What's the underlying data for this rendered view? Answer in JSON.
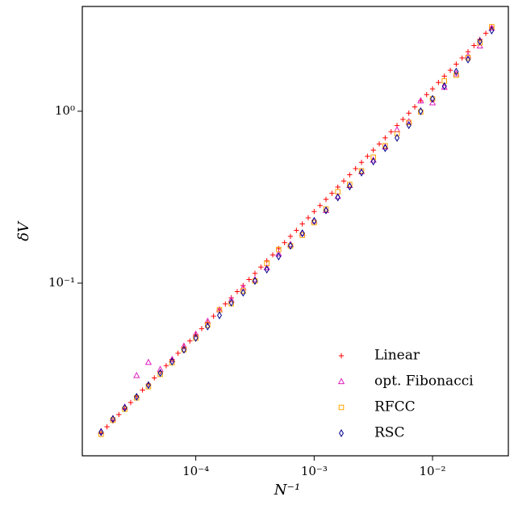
{
  "chart_data": {
    "type": "scatter",
    "xlabel": "N⁻¹",
    "ylabel": "δV",
    "xscale": "log",
    "yscale": "log",
    "xlim": [
      1.1e-05,
      0.0437
    ],
    "ylim": [
      0.0099,
      4.07
    ],
    "xticks": [
      {
        "value": 0.0001,
        "label": "10⁻⁴"
      },
      {
        "value": 0.001,
        "label": "10⁻³"
      },
      {
        "value": 0.01,
        "label": "10⁻²"
      }
    ],
    "yticks": [
      {
        "value": 0.1,
        "label": "10⁻¹"
      },
      {
        "value": 1,
        "label": "10⁰"
      }
    ],
    "legend": "lower right",
    "series": [
      {
        "name": "Linear",
        "color": "#ff0000",
        "marker": "plus",
        "x": [
          1.585e-05,
          1.778e-05,
          1.995e-05,
          2.239e-05,
          2.512e-05,
          2.818e-05,
          3.162e-05,
          3.548e-05,
          3.981e-05,
          4.467e-05,
          5.012e-05,
          5.623e-05,
          6.31e-05,
          7.079e-05,
          7.943e-05,
          8.913e-05,
          0.0001,
          0.0001122,
          0.0001259,
          0.0001413,
          0.0001585,
          0.0001778,
          0.0001995,
          0.0002239,
          0.0002512,
          0.0002818,
          0.0003162,
          0.0003548,
          0.0003981,
          0.0004467,
          0.0005012,
          0.0005623,
          0.000631,
          0.0007079,
          0.0007943,
          0.0008913,
          0.001,
          0.001122,
          0.001259,
          0.001413,
          0.001585,
          0.001778,
          0.001995,
          0.002239,
          0.002512,
          0.002818,
          0.003162,
          0.003548,
          0.003981,
          0.004467,
          0.005012,
          0.005623,
          0.00631,
          0.007079,
          0.007943,
          0.008913,
          0.01,
          0.01122,
          0.01259,
          0.01413,
          0.01585,
          0.01778,
          0.01995,
          0.02239,
          0.02512,
          0.02818,
          0.03162
        ],
        "values": [
          0.0134,
          0.0146,
          0.0158,
          0.0172,
          0.0186,
          0.0202,
          0.022,
          0.0239,
          0.0259,
          0.0281,
          0.0305,
          0.0331,
          0.036,
          0.0391,
          0.0425,
          0.0461,
          0.0501,
          0.0544,
          0.0591,
          0.0642,
          0.0697,
          0.0757,
          0.0822,
          0.0893,
          0.0969,
          0.105,
          0.114,
          0.124,
          0.135,
          0.146,
          0.159,
          0.172,
          0.187,
          0.203,
          0.221,
          0.24,
          0.261,
          0.283,
          0.307,
          0.333,
          0.362,
          0.393,
          0.427,
          0.464,
          0.504,
          0.547,
          0.594,
          0.645,
          0.7,
          0.76,
          0.826,
          0.897,
          0.975,
          1.06,
          1.15,
          1.25,
          1.35,
          1.47,
          1.6,
          1.73,
          1.88,
          2.04,
          2.22,
          2.41,
          2.62,
          2.84,
          3.09
        ]
      },
      {
        "name": "opt. Fibonacci",
        "color": "#e020c0",
        "marker": "triangle",
        "x": [
          1.585e-05,
          1.995e-05,
          2.512e-05,
          3.162e-05,
          3.981e-05,
          5.012e-05,
          6.31e-05,
          7.943e-05,
          0.0001,
          0.0001259,
          0.0001585,
          0.0001995,
          0.0002512,
          0.0003162,
          0.0003981,
          0.0005012,
          0.000631,
          0.0007943,
          0.001,
          0.001259,
          0.001585,
          0.001995,
          0.002512,
          0.003162,
          0.003981,
          0.005012,
          0.00631,
          0.007943,
          0.01,
          0.01259,
          0.01585,
          0.01995,
          0.02512,
          0.03162
        ],
        "values": [
          0.0137,
          0.0163,
          0.019,
          0.029,
          0.0346,
          0.0315,
          0.036,
          0.043,
          0.0505,
          0.06,
          0.07,
          0.08,
          0.094,
          0.105,
          0.123,
          0.148,
          0.168,
          0.195,
          0.23,
          0.265,
          0.32,
          0.37,
          0.445,
          0.52,
          0.62,
          0.78,
          0.87,
          1.15,
          1.12,
          1.38,
          1.65,
          2.1,
          2.4,
          3.05
        ]
      },
      {
        "name": "RFCC",
        "color": "#ffa500",
        "marker": "square",
        "x": [
          1.585e-05,
          1.995e-05,
          2.512e-05,
          3.162e-05,
          3.981e-05,
          5.012e-05,
          6.31e-05,
          7.943e-05,
          0.0001,
          0.0001259,
          0.0001585,
          0.0001995,
          0.0002512,
          0.0003162,
          0.0003981,
          0.0005012,
          0.000631,
          0.0007943,
          0.001,
          0.001259,
          0.001585,
          0.001995,
          0.002512,
          0.003162,
          0.003981,
          0.005012,
          0.00631,
          0.007943,
          0.01,
          0.01259,
          0.01585,
          0.01995,
          0.02512,
          0.03162
        ],
        "values": [
          0.0132,
          0.016,
          0.0185,
          0.0215,
          0.025,
          0.0295,
          0.0345,
          0.041,
          0.048,
          0.057,
          0.07,
          0.076,
          0.09,
          0.103,
          0.13,
          0.157,
          0.165,
          0.19,
          0.225,
          0.27,
          0.34,
          0.375,
          0.45,
          0.54,
          0.63,
          0.74,
          0.86,
          0.99,
          1.18,
          1.5,
          1.62,
          2.05,
          2.5,
          3.1
        ]
      },
      {
        "name": "RSC",
        "color": "#00008b",
        "marker": "diamond",
        "x": [
          1.585e-05,
          1.995e-05,
          2.512e-05,
          3.162e-05,
          3.981e-05,
          5.012e-05,
          6.31e-05,
          7.943e-05,
          0.0001,
          0.0001259,
          0.0001585,
          0.0001995,
          0.0002512,
          0.0003162,
          0.0003981,
          0.0005012,
          0.000631,
          0.0007943,
          0.001,
          0.001259,
          0.001585,
          0.001995,
          0.002512,
          0.003162,
          0.003981,
          0.005012,
          0.00631,
          0.007943,
          0.01,
          0.01259,
          0.01585,
          0.01995,
          0.02512,
          0.03162
        ],
        "values": [
          0.0136,
          0.0162,
          0.0188,
          0.0218,
          0.0255,
          0.03,
          0.035,
          0.041,
          0.048,
          0.056,
          0.065,
          0.077,
          0.088,
          0.103,
          0.12,
          0.143,
          0.165,
          0.195,
          0.23,
          0.265,
          0.315,
          0.365,
          0.44,
          0.51,
          0.61,
          0.7,
          0.83,
          1.0,
          1.18,
          1.4,
          1.7,
          2.0,
          2.55,
          2.95
        ]
      }
    ]
  }
}
